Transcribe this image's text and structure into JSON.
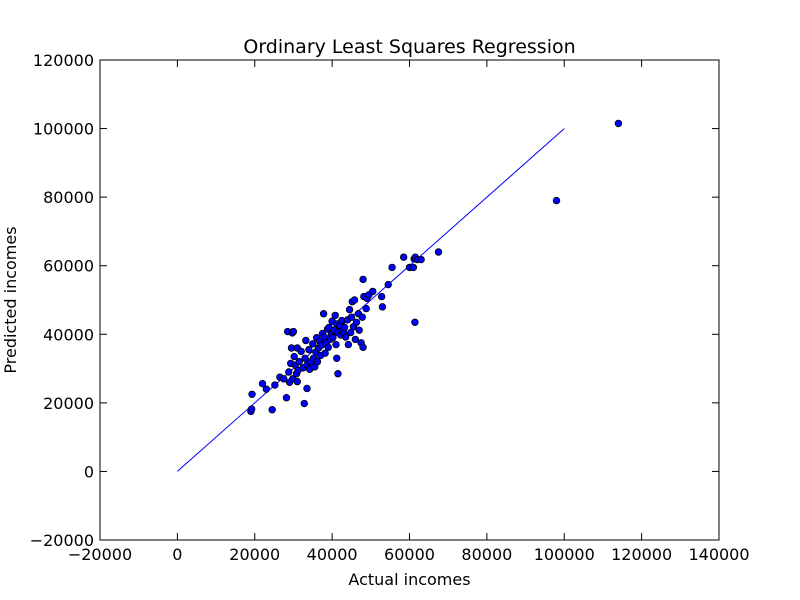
{
  "chart_data": {
    "type": "scatter",
    "title": "Ordinary Least Squares Regression",
    "xlabel": "Actual incomes",
    "ylabel": "Predicted incomes",
    "xlim": [
      -20000,
      140000
    ],
    "ylim": [
      -20000,
      120000
    ],
    "x_ticks": [
      -20000,
      0,
      20000,
      40000,
      60000,
      80000,
      100000,
      120000,
      140000
    ],
    "y_ticks": [
      -20000,
      0,
      20000,
      40000,
      60000,
      80000,
      100000,
      120000
    ],
    "x_tick_labels": [
      "−20000",
      "0",
      "20000",
      "40000",
      "60000",
      "80000",
      "100000",
      "120000",
      "140000"
    ],
    "y_tick_labels": [
      "−20000",
      "0",
      "20000",
      "40000",
      "60000",
      "80000",
      "100000",
      "120000"
    ],
    "grid": false,
    "legend": "none",
    "colors": {
      "points": "#0000ff",
      "line": "#0000ff",
      "point_edge": "#000000"
    },
    "fit_line": {
      "x": [
        0,
        100000
      ],
      "y": [
        0,
        100000
      ]
    },
    "series": [
      {
        "points": [
          [
            19000,
            17500
          ],
          [
            19200,
            18200
          ],
          [
            19300,
            22500
          ],
          [
            22000,
            25600
          ],
          [
            23000,
            24000
          ],
          [
            24500,
            18000
          ],
          [
            25200,
            25200
          ],
          [
            26500,
            27500
          ],
          [
            27500,
            27000
          ],
          [
            28200,
            21500
          ],
          [
            28500,
            40800
          ],
          [
            28800,
            29000
          ],
          [
            29000,
            26000
          ],
          [
            29300,
            31500
          ],
          [
            29500,
            36000
          ],
          [
            29700,
            40400
          ],
          [
            30000,
            40800
          ],
          [
            29800,
            27000
          ],
          [
            30200,
            33500
          ],
          [
            30500,
            31000
          ],
          [
            30800,
            28500
          ],
          [
            31000,
            36000
          ],
          [
            31200,
            29500
          ],
          [
            31000,
            26200
          ],
          [
            31500,
            32000
          ],
          [
            32000,
            35000
          ],
          [
            32500,
            30200
          ],
          [
            32800,
            19800
          ],
          [
            33000,
            33000
          ],
          [
            33200,
            38200
          ],
          [
            33500,
            31000
          ],
          [
            33500,
            24200
          ],
          [
            34000,
            35500
          ],
          [
            34200,
            29800
          ],
          [
            34500,
            32000
          ],
          [
            35000,
            37200
          ],
          [
            35200,
            33000
          ],
          [
            35500,
            30500
          ],
          [
            35800,
            34800
          ],
          [
            36000,
            39000
          ],
          [
            36200,
            32000
          ],
          [
            36500,
            36000
          ],
          [
            36800,
            38000
          ],
          [
            37000,
            33800
          ],
          [
            37200,
            36800
          ],
          [
            37500,
            40200
          ],
          [
            37800,
            46000
          ],
          [
            38000,
            39200
          ],
          [
            38200,
            34500
          ],
          [
            38500,
            37500
          ],
          [
            38800,
            41500
          ],
          [
            39000,
            36200
          ],
          [
            39200,
            42000
          ],
          [
            39500,
            38500
          ],
          [
            39800,
            40000
          ],
          [
            40000,
            43800
          ],
          [
            40200,
            39000
          ],
          [
            40500,
            41200
          ],
          [
            40800,
            45500
          ],
          [
            41000,
            37000
          ],
          [
            41200,
            43000
          ],
          [
            41500,
            40500
          ],
          [
            41200,
            33000
          ],
          [
            41500,
            28500
          ],
          [
            42000,
            42500
          ],
          [
            42200,
            39800
          ],
          [
            42500,
            44000
          ],
          [
            42800,
            41000
          ],
          [
            43000,
            40500
          ],
          [
            43200,
            42000
          ],
          [
            43500,
            39200
          ],
          [
            44000,
            44200
          ],
          [
            44200,
            37000
          ],
          [
            44500,
            47200
          ],
          [
            44800,
            40500
          ],
          [
            45000,
            45000
          ],
          [
            45200,
            49500
          ],
          [
            45500,
            42200
          ],
          [
            45800,
            50000
          ],
          [
            46000,
            38500
          ],
          [
            46300,
            43500
          ],
          [
            46800,
            46000
          ],
          [
            47000,
            41200
          ],
          [
            47500,
            37500
          ],
          [
            47800,
            45000
          ],
          [
            48000,
            36200
          ],
          [
            48200,
            51000
          ],
          [
            48000,
            56000
          ],
          [
            48800,
            47500
          ],
          [
            49000,
            50500
          ],
          [
            49500,
            51500
          ],
          [
            50500,
            52500
          ],
          [
            52800,
            51000
          ],
          [
            53000,
            48000
          ],
          [
            54500,
            54500
          ],
          [
            55500,
            59500
          ],
          [
            58500,
            62500
          ],
          [
            60000,
            59500
          ],
          [
            61000,
            59500
          ],
          [
            61200,
            62000
          ],
          [
            61400,
            43500
          ],
          [
            61500,
            62500
          ],
          [
            62000,
            61800
          ],
          [
            63000,
            61800
          ],
          [
            67500,
            64000
          ],
          [
            98000,
            79000
          ],
          [
            114000,
            101500
          ]
        ]
      }
    ]
  }
}
